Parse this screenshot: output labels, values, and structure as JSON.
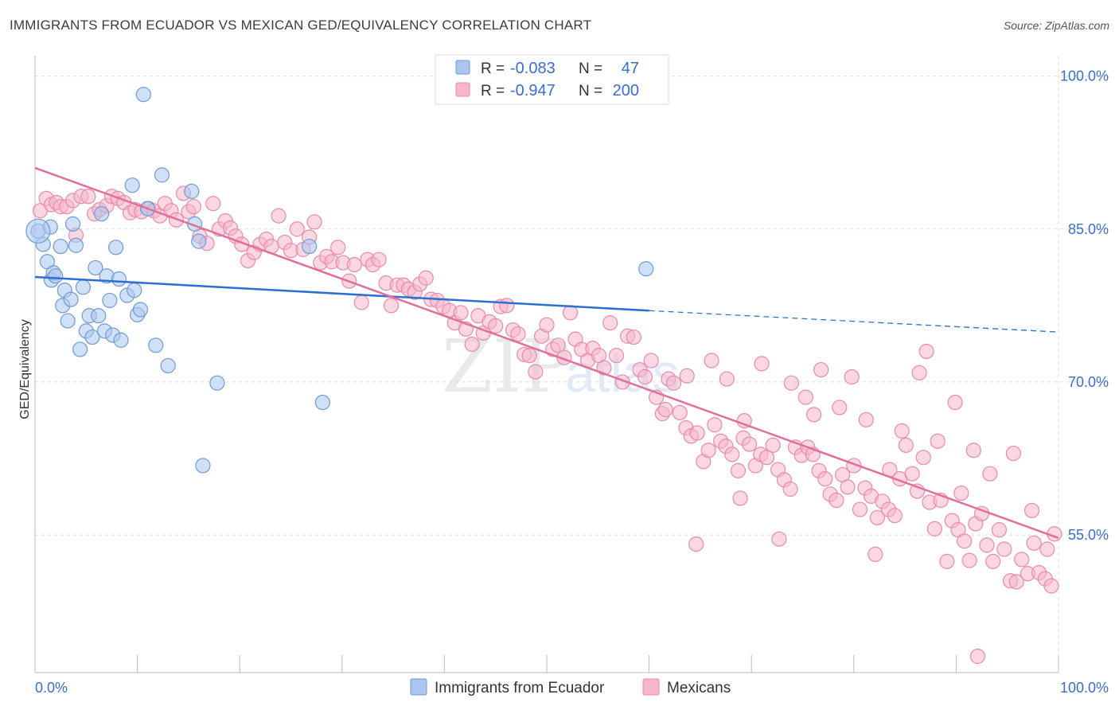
{
  "title": "IMMIGRANTS FROM ECUADOR VS MEXICAN GED/EQUIVALENCY CORRELATION CHART",
  "source": "Source: ZipAtlas.com",
  "watermark": {
    "zip": "ZIP",
    "atlas": "atlas"
  },
  "colors": {
    "blue_fill": "#aac6ee",
    "blue_stroke": "#6e9bd6",
    "blue_line": "#2c6fcf",
    "pink_fill": "#f6b7cc",
    "pink_stroke": "#e98aaa",
    "pink_line": "#e0709a",
    "grid": "#dddddd",
    "axis_tick_text": "#3a6fc4"
  },
  "stats": {
    "r_label": "R =",
    "n_label": "N =",
    "rows": [
      {
        "r": "-0.083",
        "n": "47"
      },
      {
        "r": "-0.947",
        "n": "200"
      }
    ]
  },
  "chart_data": {
    "type": "scatter",
    "xlabel": "",
    "ylabel": "GED/Equivalency",
    "x_ticks": [
      "0.0%",
      "100.0%"
    ],
    "y_ticks": [
      "100.0%",
      "85.0%",
      "70.0%",
      "55.0%"
    ],
    "xlim": [
      0,
      100
    ],
    "ylim": [
      41.5,
      102
    ],
    "grid": true,
    "legend_placement": "bottom",
    "series": [
      {
        "name": "Immigrants from Ecuador",
        "color": "#aac6ee",
        "trend": {
          "x0": 0,
          "y0": 80.3,
          "x1": 60,
          "y1": 77.0,
          "dash_to_x": 100,
          "dash_to_y": 74.9
        },
        "points": [
          [
            0.3,
            84.8
          ],
          [
            0.8,
            83.5
          ],
          [
            1.2,
            81.8
          ],
          [
            1.6,
            80.0
          ],
          [
            1.8,
            80.7
          ],
          [
            2.0,
            80.4
          ],
          [
            2.5,
            83.3
          ],
          [
            2.7,
            77.5
          ],
          [
            2.9,
            79.0
          ],
          [
            3.2,
            76.0
          ],
          [
            3.5,
            78.1
          ],
          [
            3.7,
            85.5
          ],
          [
            4.0,
            83.4
          ],
          [
            4.4,
            73.2
          ],
          [
            4.7,
            79.3
          ],
          [
            5.0,
            75.0
          ],
          [
            5.3,
            76.5
          ],
          [
            5.6,
            74.4
          ],
          [
            5.9,
            81.2
          ],
          [
            6.2,
            76.5
          ],
          [
            6.5,
            86.5
          ],
          [
            6.8,
            75.0
          ],
          [
            7.0,
            80.4
          ],
          [
            7.3,
            78.0
          ],
          [
            7.6,
            74.6
          ],
          [
            7.9,
            83.2
          ],
          [
            8.2,
            80.1
          ],
          [
            8.4,
            74.1
          ],
          [
            9.0,
            78.5
          ],
          [
            9.5,
            89.3
          ],
          [
            9.7,
            79.0
          ],
          [
            10.0,
            76.6
          ],
          [
            10.3,
            77.1
          ],
          [
            10.6,
            98.2
          ],
          [
            11.0,
            87.0
          ],
          [
            11.8,
            73.6
          ],
          [
            12.4,
            90.3
          ],
          [
            13.0,
            71.6
          ],
          [
            15.3,
            88.7
          ],
          [
            15.6,
            85.5
          ],
          [
            16.0,
            83.8
          ],
          [
            16.4,
            61.8
          ],
          [
            17.8,
            69.9
          ],
          [
            26.8,
            83.3
          ],
          [
            28.1,
            68.0
          ],
          [
            59.7,
            81.1
          ],
          [
            1.5,
            85.2
          ]
        ]
      },
      {
        "name": "Mexicans",
        "color": "#f6b7cc",
        "trend": {
          "x0": 0,
          "y0": 91.0,
          "x1": 100,
          "y1": 54.7
        },
        "points": [
          [
            0.5,
            86.8
          ],
          [
            1.1,
            88.0
          ],
          [
            1.6,
            87.4
          ],
          [
            2.1,
            87.6
          ],
          [
            2.5,
            87.2
          ],
          [
            3.1,
            87.2
          ],
          [
            3.7,
            87.8
          ],
          [
            4.0,
            84.4
          ],
          [
            4.5,
            88.2
          ],
          [
            5.2,
            88.2
          ],
          [
            5.8,
            86.5
          ],
          [
            6.3,
            86.9
          ],
          [
            7.0,
            87.3
          ],
          [
            7.5,
            88.2
          ],
          [
            8.1,
            88.0
          ],
          [
            8.7,
            87.6
          ],
          [
            9.3,
            86.6
          ],
          [
            9.8,
            86.9
          ],
          [
            10.4,
            86.7
          ],
          [
            11.1,
            87.0
          ],
          [
            11.6,
            86.8
          ],
          [
            12.2,
            86.3
          ],
          [
            12.7,
            87.5
          ],
          [
            13.3,
            86.8
          ],
          [
            13.8,
            85.9
          ],
          [
            14.5,
            88.5
          ],
          [
            15.0,
            86.7
          ],
          [
            15.5,
            87.2
          ],
          [
            16.1,
            84.3
          ],
          [
            16.8,
            83.6
          ],
          [
            17.4,
            87.5
          ],
          [
            18.0,
            85.0
          ],
          [
            18.6,
            85.8
          ],
          [
            19.1,
            85.1
          ],
          [
            19.6,
            84.3
          ],
          [
            20.2,
            83.5
          ],
          [
            20.8,
            81.9
          ],
          [
            21.4,
            82.7
          ],
          [
            22.0,
            83.5
          ],
          [
            22.6,
            84.0
          ],
          [
            23.1,
            83.3
          ],
          [
            23.8,
            86.3
          ],
          [
            24.4,
            83.7
          ],
          [
            25.0,
            82.9
          ],
          [
            25.6,
            85.0
          ],
          [
            26.2,
            83.0
          ],
          [
            26.8,
            84.2
          ],
          [
            27.3,
            85.7
          ],
          [
            27.9,
            81.7
          ],
          [
            28.5,
            82.3
          ],
          [
            29.0,
            81.8
          ],
          [
            29.6,
            83.2
          ],
          [
            30.1,
            81.7
          ],
          [
            30.7,
            79.9
          ],
          [
            31.2,
            81.5
          ],
          [
            31.9,
            77.8
          ],
          [
            32.5,
            82.0
          ],
          [
            33.0,
            81.5
          ],
          [
            33.6,
            82.0
          ],
          [
            34.3,
            79.7
          ],
          [
            34.8,
            77.5
          ],
          [
            35.4,
            79.5
          ],
          [
            36.0,
            79.5
          ],
          [
            36.5,
            79.1
          ],
          [
            37.1,
            78.8
          ],
          [
            37.6,
            79.6
          ],
          [
            38.2,
            80.2
          ],
          [
            38.7,
            78.1
          ],
          [
            39.3,
            78.0
          ],
          [
            39.9,
            77.4
          ],
          [
            40.5,
            77.0
          ],
          [
            41.0,
            75.8
          ],
          [
            41.6,
            76.8
          ],
          [
            42.1,
            75.2
          ],
          [
            42.7,
            73.7
          ],
          [
            43.3,
            76.5
          ],
          [
            43.8,
            74.8
          ],
          [
            44.4,
            75.9
          ],
          [
            45.0,
            75.5
          ],
          [
            45.5,
            77.4
          ],
          [
            46.1,
            77.5
          ],
          [
            46.7,
            75.1
          ],
          [
            47.2,
            74.7
          ],
          [
            47.8,
            72.7
          ],
          [
            48.3,
            72.6
          ],
          [
            48.9,
            71.0
          ],
          [
            49.5,
            74.5
          ],
          [
            50.0,
            75.6
          ],
          [
            50.6,
            73.2
          ],
          [
            51.1,
            73.6
          ],
          [
            51.7,
            72.4
          ],
          [
            52.3,
            76.8
          ],
          [
            52.8,
            74.2
          ],
          [
            53.4,
            73.2
          ],
          [
            54.0,
            72.1
          ],
          [
            54.5,
            73.3
          ],
          [
            55.1,
            72.6
          ],
          [
            55.6,
            71.4
          ],
          [
            56.2,
            75.8
          ],
          [
            56.8,
            72.6
          ],
          [
            57.4,
            70.0
          ],
          [
            57.9,
            74.5
          ],
          [
            58.5,
            74.4
          ],
          [
            59.1,
            71.2
          ],
          [
            59.6,
            70.5
          ],
          [
            60.2,
            72.1
          ],
          [
            60.7,
            68.5
          ],
          [
            61.3,
            66.9
          ],
          [
            61.9,
            70.3
          ],
          [
            62.4,
            69.9
          ],
          [
            63.0,
            67.0
          ],
          [
            63.6,
            65.5
          ],
          [
            64.1,
            64.7
          ],
          [
            64.7,
            65.0
          ],
          [
            65.3,
            62.2
          ],
          [
            65.8,
            63.3
          ],
          [
            66.4,
            65.8
          ],
          [
            67.0,
            64.2
          ],
          [
            67.5,
            63.7
          ],
          [
            68.1,
            62.9
          ],
          [
            68.7,
            61.3
          ],
          [
            69.2,
            64.5
          ],
          [
            69.8,
            63.9
          ],
          [
            70.4,
            61.8
          ],
          [
            70.9,
            62.9
          ],
          [
            71.5,
            62.6
          ],
          [
            72.1,
            63.8
          ],
          [
            72.6,
            61.4
          ],
          [
            73.2,
            60.4
          ],
          [
            73.8,
            59.5
          ],
          [
            74.3,
            63.6
          ],
          [
            74.9,
            62.8
          ],
          [
            75.5,
            63.6
          ],
          [
            76.0,
            62.9
          ],
          [
            76.6,
            61.3
          ],
          [
            77.2,
            60.5
          ],
          [
            77.7,
            59.0
          ],
          [
            78.3,
            58.4
          ],
          [
            78.9,
            60.9
          ],
          [
            79.4,
            59.7
          ],
          [
            80.0,
            61.8
          ],
          [
            80.6,
            57.5
          ],
          [
            81.1,
            59.6
          ],
          [
            81.7,
            58.8
          ],
          [
            82.3,
            56.7
          ],
          [
            82.8,
            58.3
          ],
          [
            83.4,
            57.5
          ],
          [
            84.0,
            56.9
          ],
          [
            84.5,
            60.5
          ],
          [
            85.1,
            63.8
          ],
          [
            85.7,
            61.0
          ],
          [
            86.2,
            59.3
          ],
          [
            86.8,
            62.6
          ],
          [
            87.4,
            58.2
          ],
          [
            87.9,
            55.6
          ],
          [
            88.5,
            58.4
          ],
          [
            89.1,
            52.4
          ],
          [
            89.6,
            56.4
          ],
          [
            90.2,
            55.5
          ],
          [
            90.8,
            54.4
          ],
          [
            91.3,
            52.5
          ],
          [
            91.9,
            56.1
          ],
          [
            92.5,
            57.1
          ],
          [
            93.0,
            54.0
          ],
          [
            93.6,
            52.4
          ],
          [
            94.2,
            55.5
          ],
          [
            94.7,
            53.6
          ],
          [
            95.3,
            50.5
          ],
          [
            95.9,
            50.4
          ],
          [
            96.4,
            52.6
          ],
          [
            97.0,
            51.2
          ],
          [
            97.6,
            54.2
          ],
          [
            98.1,
            51.3
          ],
          [
            98.7,
            50.7
          ],
          [
            99.3,
            50.0
          ],
          [
            99.6,
            55.1
          ],
          [
            61.6,
            67.3
          ],
          [
            63.7,
            70.6
          ],
          [
            66.1,
            72.1
          ],
          [
            67.6,
            70.3
          ],
          [
            69.3,
            66.2
          ],
          [
            71.0,
            71.8
          ],
          [
            73.9,
            69.9
          ],
          [
            75.3,
            68.5
          ],
          [
            76.8,
            71.2
          ],
          [
            78.6,
            67.5
          ],
          [
            81.2,
            66.3
          ],
          [
            83.5,
            61.4
          ],
          [
            86.4,
            70.9
          ],
          [
            88.2,
            64.2
          ],
          [
            89.9,
            68.0
          ],
          [
            91.7,
            63.3
          ],
          [
            93.3,
            61.0
          ],
          [
            95.6,
            63.0
          ],
          [
            97.4,
            57.4
          ],
          [
            98.9,
            53.6
          ],
          [
            64.6,
            54.1
          ],
          [
            68.9,
            58.6
          ],
          [
            72.7,
            54.6
          ],
          [
            76.1,
            66.8
          ],
          [
            79.8,
            70.5
          ],
          [
            82.1,
            53.1
          ],
          [
            84.7,
            65.2
          ],
          [
            87.1,
            73.0
          ],
          [
            90.5,
            59.1
          ],
          [
            92.1,
            43.1
          ]
        ]
      }
    ]
  }
}
